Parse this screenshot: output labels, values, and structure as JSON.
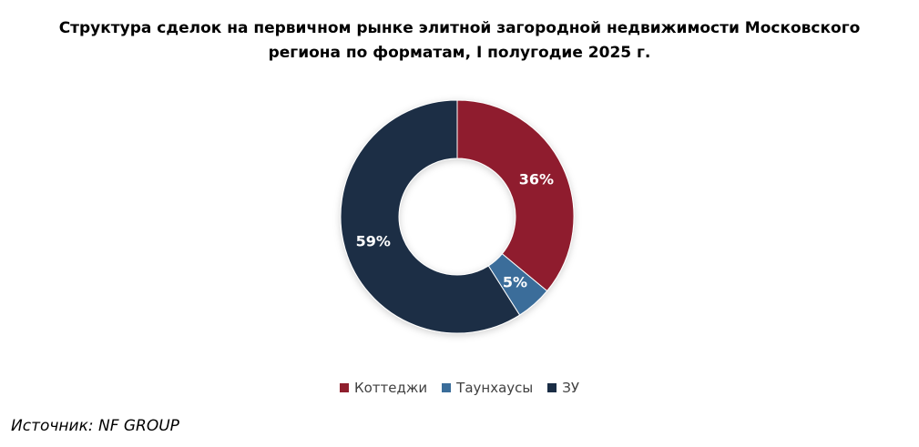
{
  "chart_data": {
    "type": "pie",
    "variant": "donut",
    "title_lines": [
      "Структура сделок на первичном рынке элитной загородной недвижимости Московского",
      "региона по форматам, I полугодие 2025 г."
    ],
    "categories": [
      "Коттеджи",
      "Таунхаусы",
      "ЗУ"
    ],
    "values": [
      36,
      5,
      59
    ],
    "labels": [
      "36%",
      "5%",
      "59%"
    ],
    "colors": [
      "#8f1f2d",
      "#3a6d9a",
      "#1a2d45"
    ],
    "legend_position": "bottom"
  },
  "source": "Источник: NF GROUP"
}
